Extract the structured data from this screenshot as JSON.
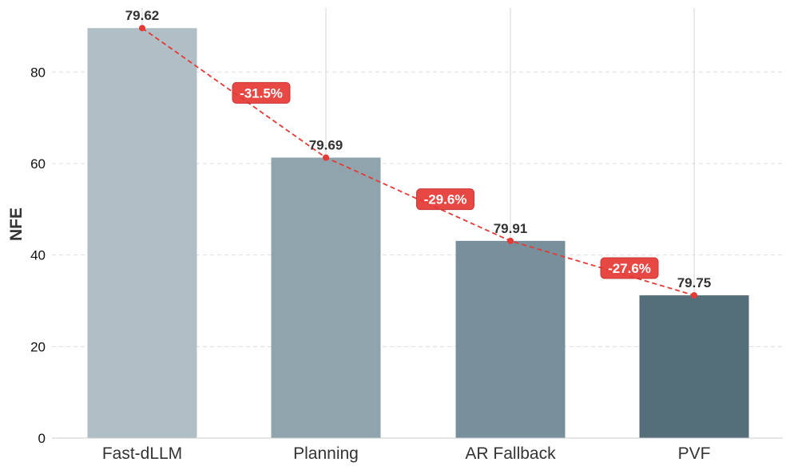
{
  "chart_data": {
    "type": "bar",
    "title": "",
    "xlabel": "",
    "ylabel": "NFE",
    "categories": [
      "Fast-dLLM",
      "Planning",
      "AR Fallback",
      "PVF"
    ],
    "values": [
      89.6,
      61.3,
      43.1,
      31.2
    ],
    "value_labels": [
      "79.62",
      "79.69",
      "79.91",
      "79.75"
    ],
    "reductions": [
      "-31.5%",
      "-29.6%",
      "-27.6%"
    ],
    "ylim": [
      0,
      94
    ],
    "yticks": [
      0,
      20,
      40,
      60,
      80
    ],
    "grid": "y dashed",
    "colors": {
      "bars": [
        "#b0bec5",
        "#90a4ae",
        "#78909c",
        "#546e7a"
      ],
      "trend_line": "#e53935",
      "badge": "#e53935",
      "badge_border": "#c62828"
    }
  }
}
